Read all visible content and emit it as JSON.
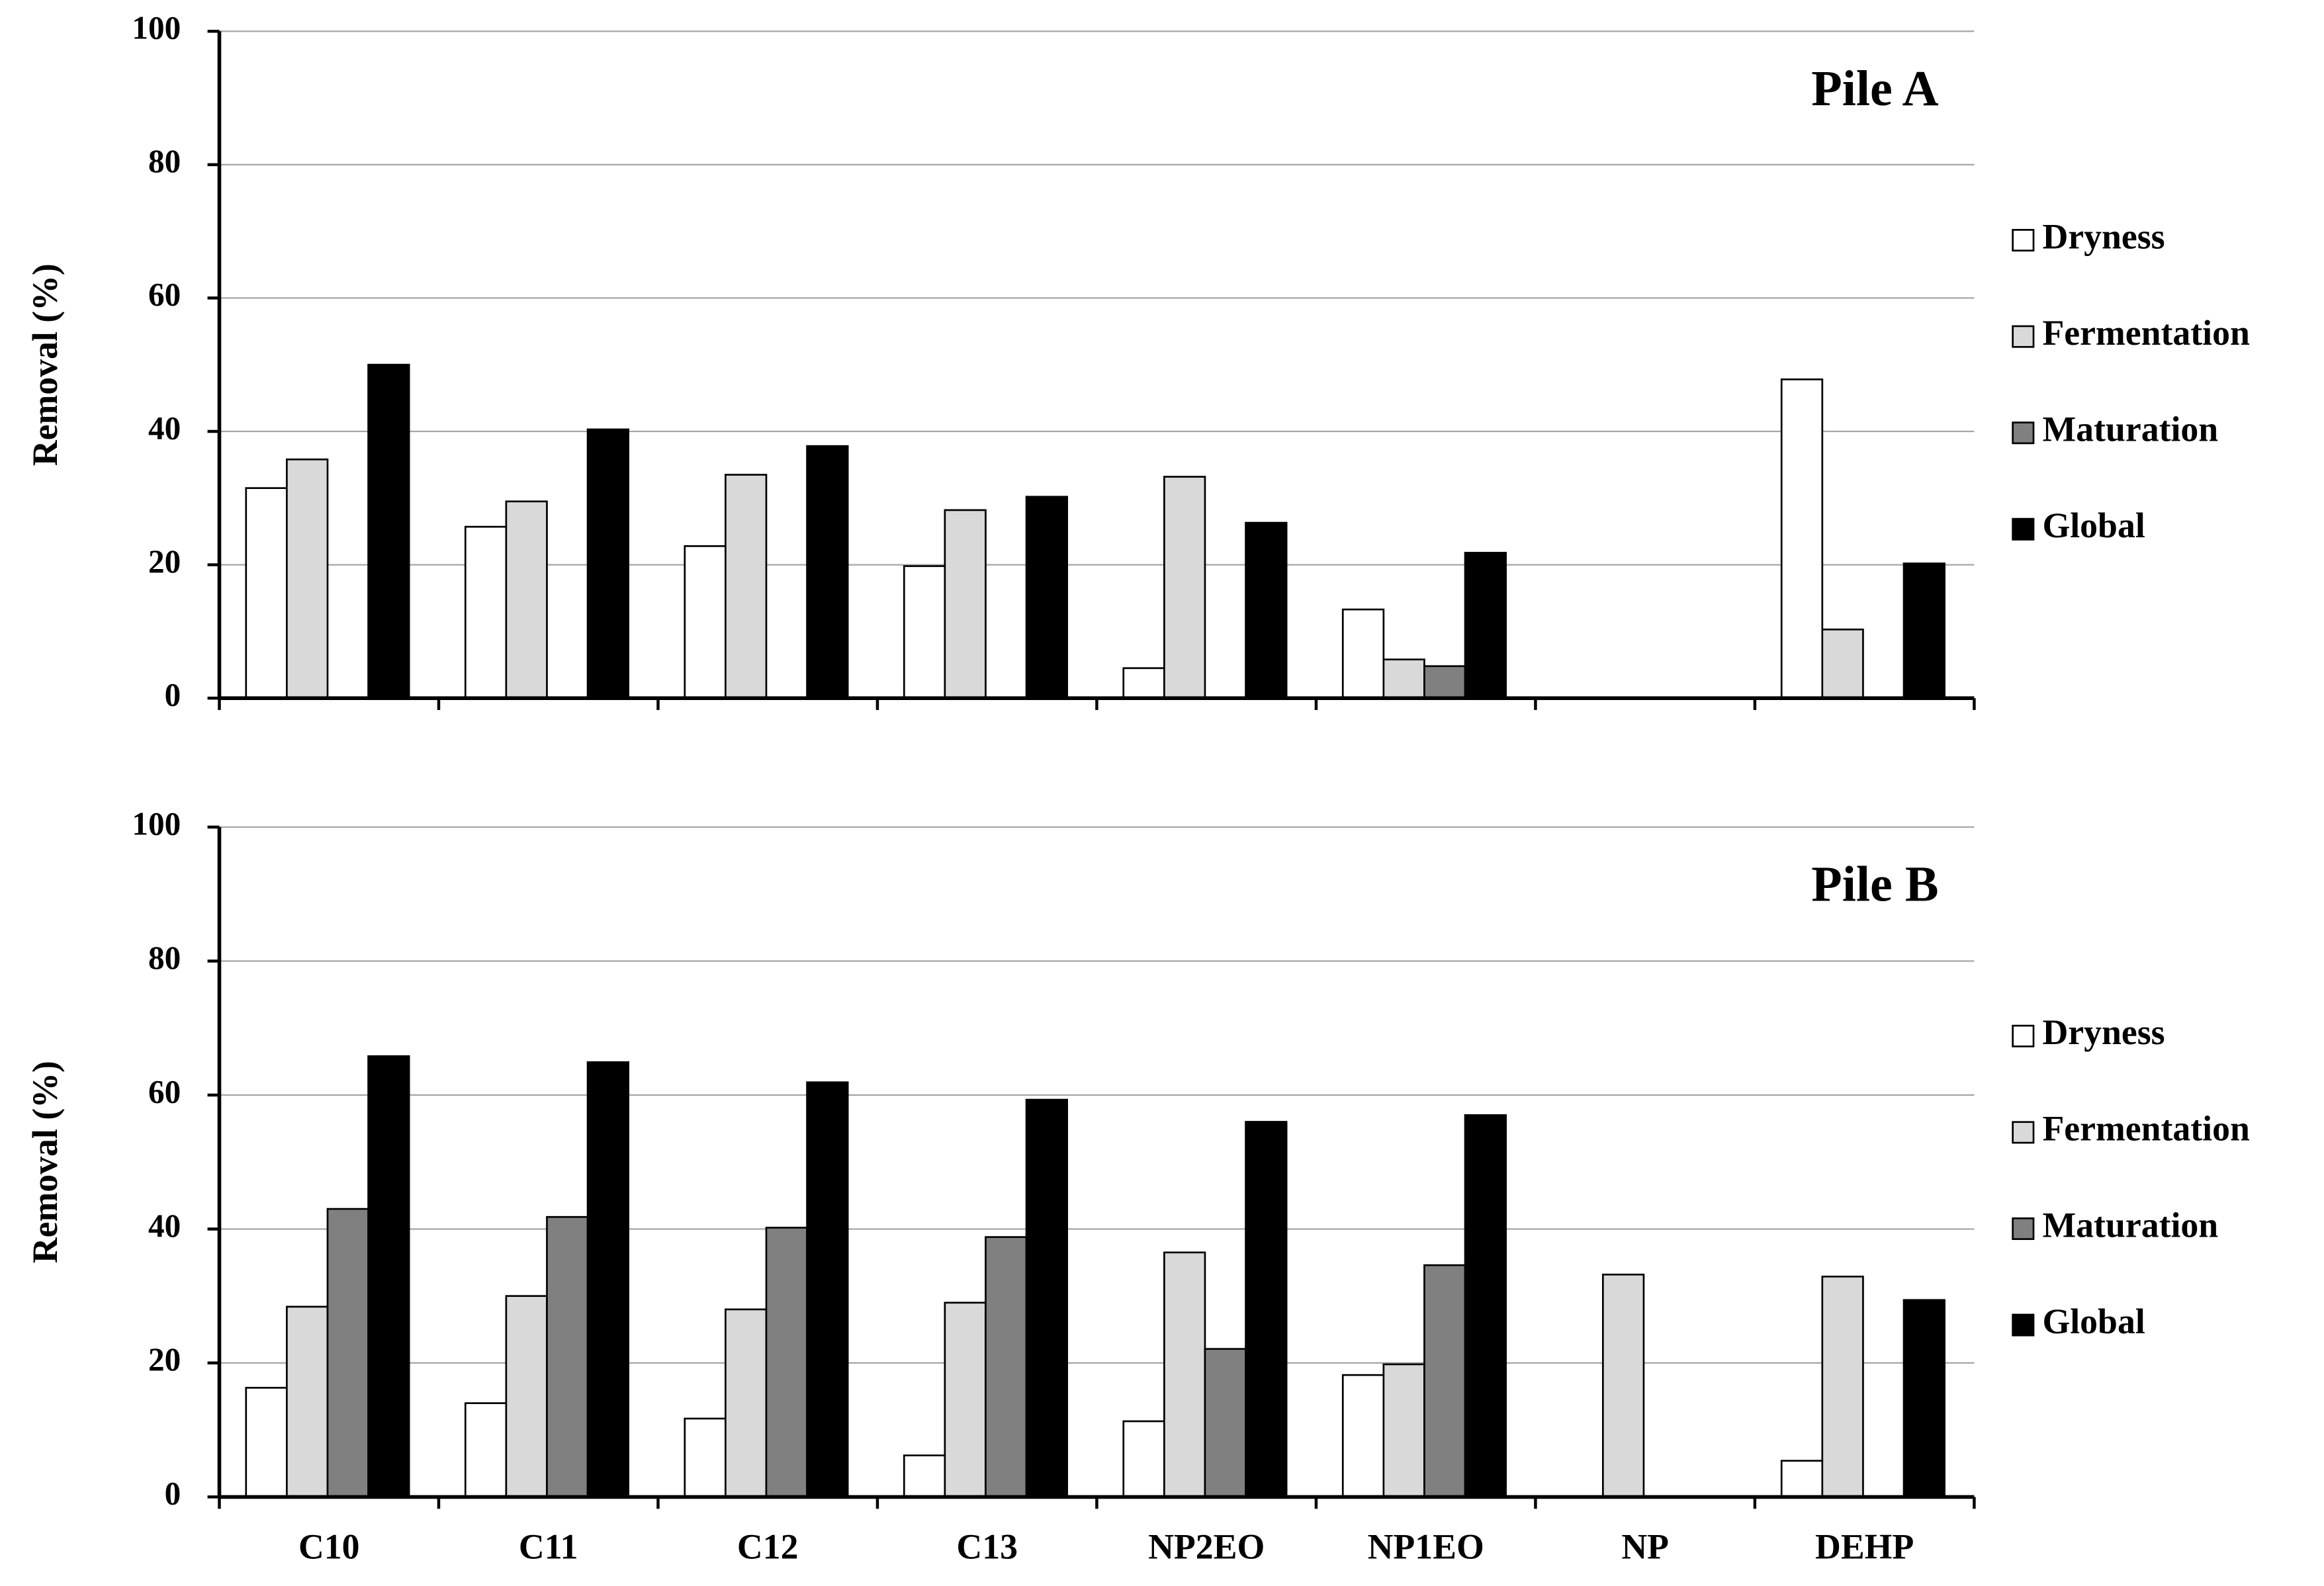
{
  "chart_data": [
    {
      "type": "bar",
      "title": "Pile A",
      "y_label": "Removal (%)",
      "categories": [
        null,
        null,
        null,
        null,
        null,
        null,
        null,
        null
      ],
      "series": [
        {
          "name": "Dryness",
          "color": "#ffffff",
          "values": [
            31.5,
            25.7,
            22.8,
            19.8,
            4.5,
            13.3,
            0,
            47.8
          ]
        },
        {
          "name": "Fermentation",
          "color": "#d9d9d9",
          "values": [
            35.8,
            29.5,
            33.5,
            28.2,
            33.2,
            5.8,
            0,
            10.3
          ]
        },
        {
          "name": "Maturation",
          "color": "#808080",
          "values": [
            0,
            0,
            0,
            0,
            0,
            4.8,
            0,
            0
          ]
        },
        {
          "name": "Global",
          "color": "#000000",
          "values": [
            50,
            40.3,
            37.8,
            30.2,
            26.3,
            21.8,
            0,
            20.2
          ]
        }
      ],
      "ylim": [
        0,
        100
      ],
      "yticks": [
        0,
        20,
        40,
        60,
        80,
        100
      ],
      "grid": true,
      "legend": "right"
    },
    {
      "type": "bar",
      "title": "Pile B",
      "y_label": "Removal (%)",
      "categories": [
        "C10",
        "C11",
        "C12",
        "C13",
        "NP2EO",
        "NP1EO",
        "NP",
        "DEHP"
      ],
      "series": [
        {
          "name": "Dryness",
          "color": "#ffffff",
          "values": [
            16.3,
            14,
            11.7,
            6.2,
            11.3,
            18.2,
            0,
            5.4
          ]
        },
        {
          "name": "Fermentation",
          "color": "#d9d9d9",
          "values": [
            28.4,
            30,
            28,
            29,
            36.5,
            19.8,
            33.2,
            32.9
          ]
        },
        {
          "name": "Maturation",
          "color": "#808080",
          "values": [
            43,
            41.8,
            40.2,
            38.8,
            22.1,
            34.6,
            0,
            0
          ]
        },
        {
          "name": "Global",
          "color": "#000000",
          "values": [
            65.8,
            64.9,
            61.9,
            59.3,
            56,
            57,
            0,
            29.4
          ]
        }
      ],
      "ylim": [
        0,
        100
      ],
      "yticks": [
        0,
        20,
        40,
        60,
        80,
        100
      ],
      "grid": true,
      "legend": "right"
    }
  ]
}
